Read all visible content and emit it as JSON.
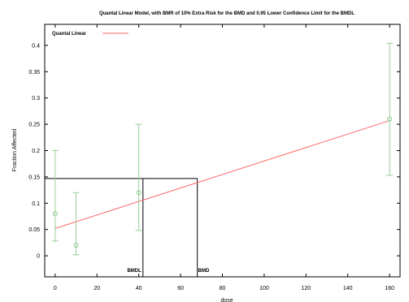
{
  "chart_data": {
    "type": "scatter",
    "title": "Quantal Linear Model, with BMR of 10% Extra Risk for the BMD and 0.95 Lower Confidence Limit for the BMDL",
    "xlabel": "dose",
    "ylabel": "Fraction Affected",
    "xlim": [
      -5,
      165
    ],
    "ylim": [
      -0.04,
      0.44
    ],
    "xticks": [
      0,
      20,
      40,
      60,
      80,
      100,
      120,
      140,
      160
    ],
    "yticks": [
      0,
      0.05,
      0.1,
      0.15,
      0.2,
      0.25,
      0.3,
      0.35,
      0.4
    ],
    "ytick_labels": [
      "0",
      "0.05",
      "0.1",
      "0.15",
      "0.2",
      "0.25",
      "0.3",
      "0.35",
      "0.4"
    ],
    "grid": false,
    "legend": {
      "position": "top-left",
      "entries": [
        "Quantal Linear"
      ]
    },
    "points": [
      {
        "x": 0,
        "y": 0.08,
        "lower": 0.028,
        "upper": 0.2
      },
      {
        "x": 10,
        "y": 0.02,
        "lower": 0.002,
        "upper": 0.12
      },
      {
        "x": 40,
        "y": 0.12,
        "lower": 0.048,
        "upper": 0.25
      },
      {
        "x": 160,
        "y": 0.26,
        "lower": 0.153,
        "upper": 0.404
      }
    ],
    "model_line": {
      "name": "Quantal Linear",
      "x": [
        0,
        160
      ],
      "y": [
        0.052,
        0.257
      ]
    },
    "bmr_level": 0.147,
    "bmdl": 42,
    "bmd": 68,
    "bmdl_label": "BMDL",
    "bmd_label": "BMD",
    "colors": {
      "line": "#ff6666",
      "points": "#99cc99",
      "axes": "#000000"
    }
  }
}
